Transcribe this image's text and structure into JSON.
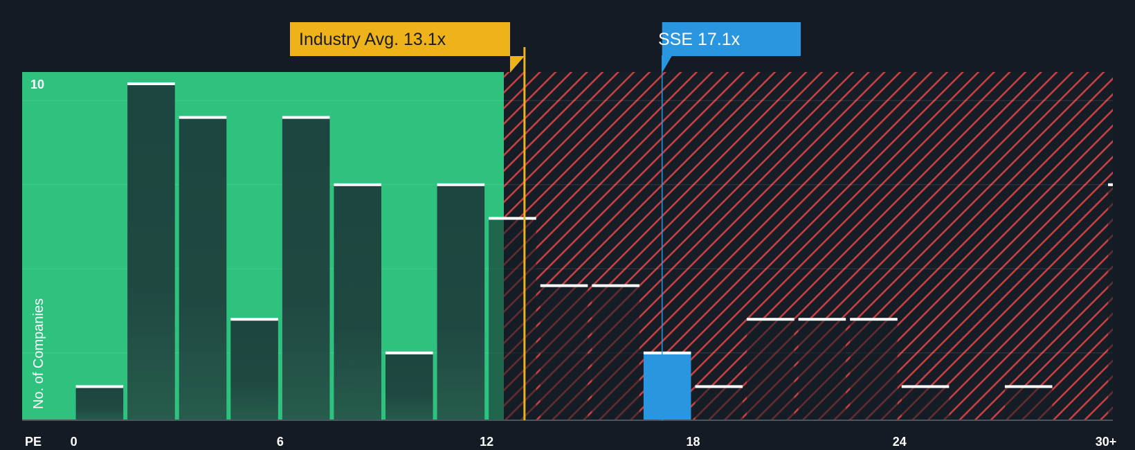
{
  "chart_data": {
    "type": "bar",
    "title": "",
    "xlabel": "PE",
    "ylabel": "No. of Companies",
    "xlim": [
      -1.5,
      30.2
    ],
    "ylim": [
      0,
      10.35
    ],
    "x_ticks": [
      {
        "value": 0,
        "label": "0"
      },
      {
        "value": 6,
        "label": "6"
      },
      {
        "value": 12,
        "label": "12"
      },
      {
        "value": 18,
        "label": "18"
      },
      {
        "value": 24,
        "label": "24"
      },
      {
        "value": 30,
        "label": "30+"
      }
    ],
    "y_ticks": [
      {
        "value": 10,
        "label": "10"
      }
    ],
    "bin_width": 1.5,
    "bins": [
      {
        "start": 0,
        "count": 1
      },
      {
        "start": 1.5,
        "count": 10
      },
      {
        "start": 3,
        "count": 9
      },
      {
        "start": 4.5,
        "count": 3
      },
      {
        "start": 6,
        "count": 9
      },
      {
        "start": 7.5,
        "count": 7
      },
      {
        "start": 9,
        "count": 2
      },
      {
        "start": 10.5,
        "count": 7
      },
      {
        "start": 12,
        "count": 6
      },
      {
        "start": 13.5,
        "count": 4
      },
      {
        "start": 15,
        "count": 4
      },
      {
        "start": 16.5,
        "count": 2
      },
      {
        "start": 18,
        "count": 1
      },
      {
        "start": 19.5,
        "count": 3
      },
      {
        "start": 21,
        "count": 3
      },
      {
        "start": 22.5,
        "count": 3
      },
      {
        "start": 24,
        "count": 1
      },
      {
        "start": 25.5,
        "count": 0
      },
      {
        "start": 27,
        "count": 1
      },
      {
        "start": 28.5,
        "count": 0
      },
      {
        "start": 30,
        "count": 7
      }
    ],
    "fair_value_boundary": 12.5,
    "industry_avg": {
      "label": "Industry Avg. 13.1x",
      "value": 13.1
    },
    "company": {
      "label": "SSE 17.1x",
      "value": 17.1,
      "bin_start": 16.5
    }
  },
  "colors": {
    "background": "#141b24",
    "undervalued": "#2ec27e",
    "overvalued_stripe": "#d64545",
    "bar": "#1e4640",
    "industry": "#eeb21a",
    "company": "#2a96e0"
  }
}
